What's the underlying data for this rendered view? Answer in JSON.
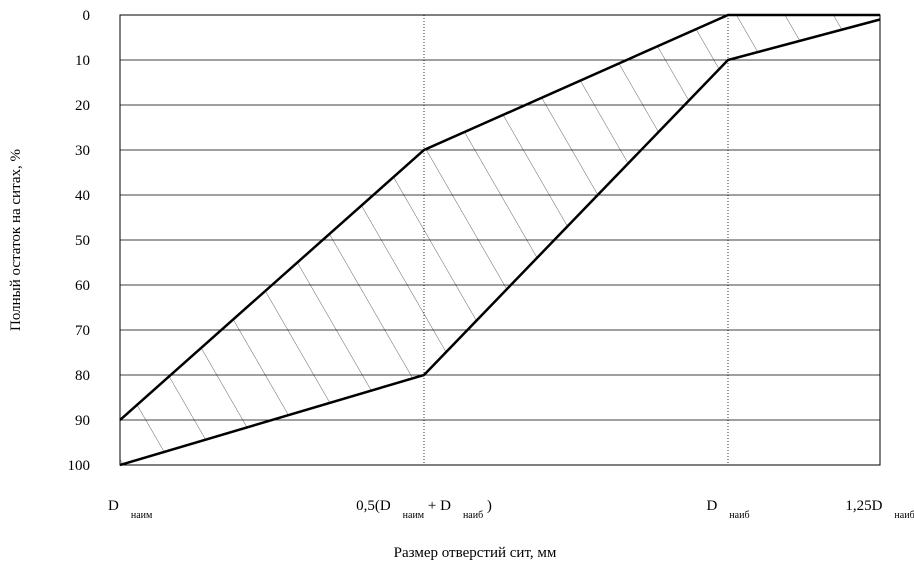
{
  "chart_data": {
    "type": "line",
    "y_label": "Полный остаток на ситах, %",
    "x_label": "Размер отверстий сит, мм",
    "categories": [
      [
        "D",
        "наим"
      ],
      [
        "0,5(D",
        "наим",
        " + D",
        "наиб",
        " )"
      ],
      [
        "D",
        "наиб"
      ],
      [
        "1,25D",
        "наиб"
      ]
    ],
    "series": [
      {
        "color": "#000000",
        "values": [
          90,
          30,
          0,
          0
        ]
      },
      {
        "color": "#000000",
        "values": [
          100,
          80,
          10,
          1
        ]
      }
    ],
    "ylim": [
      0,
      100
    ],
    "yticks": [
      0,
      10,
      20,
      30,
      40,
      50,
      60,
      70,
      80,
      90,
      100
    ],
    "y_inverted": true,
    "grid": true,
    "hatch": true
  }
}
